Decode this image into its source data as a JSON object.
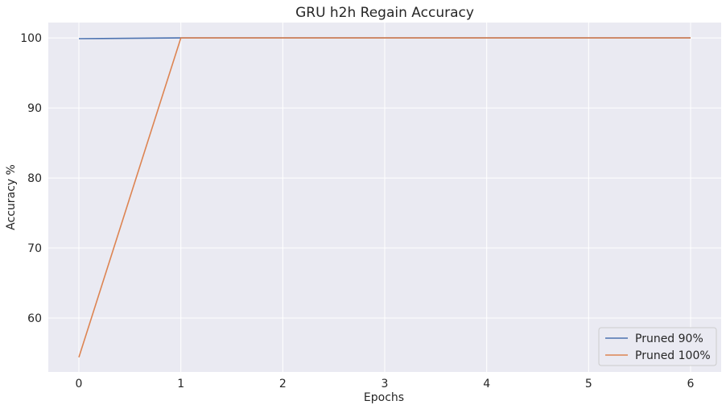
{
  "chart_data": {
    "type": "line",
    "title": "GRU h2h Regain Accuracy",
    "xlabel": "Epochs",
    "ylabel": "Accuracy %",
    "x": [
      0,
      1,
      2,
      3,
      4,
      5,
      6
    ],
    "xticks": [
      "0",
      "1",
      "2",
      "3",
      "4",
      "5",
      "6"
    ],
    "yticks": [
      "60",
      "70",
      "80",
      "90",
      "100"
    ],
    "xlim": [
      -0.3,
      6.3
    ],
    "ylim": [
      52.3,
      102.2
    ],
    "grid": true,
    "legend_position": "bottom-right",
    "background": "#eaeaf2",
    "series": [
      {
        "name": "Pruned 90%",
        "color": "#4c72b0",
        "values": [
          99.9,
          100,
          100,
          100,
          100,
          100,
          100
        ]
      },
      {
        "name": "Pruned 100%",
        "color": "#dd8452",
        "values": [
          54.4,
          100,
          100,
          100,
          100,
          100,
          100
        ]
      }
    ]
  }
}
